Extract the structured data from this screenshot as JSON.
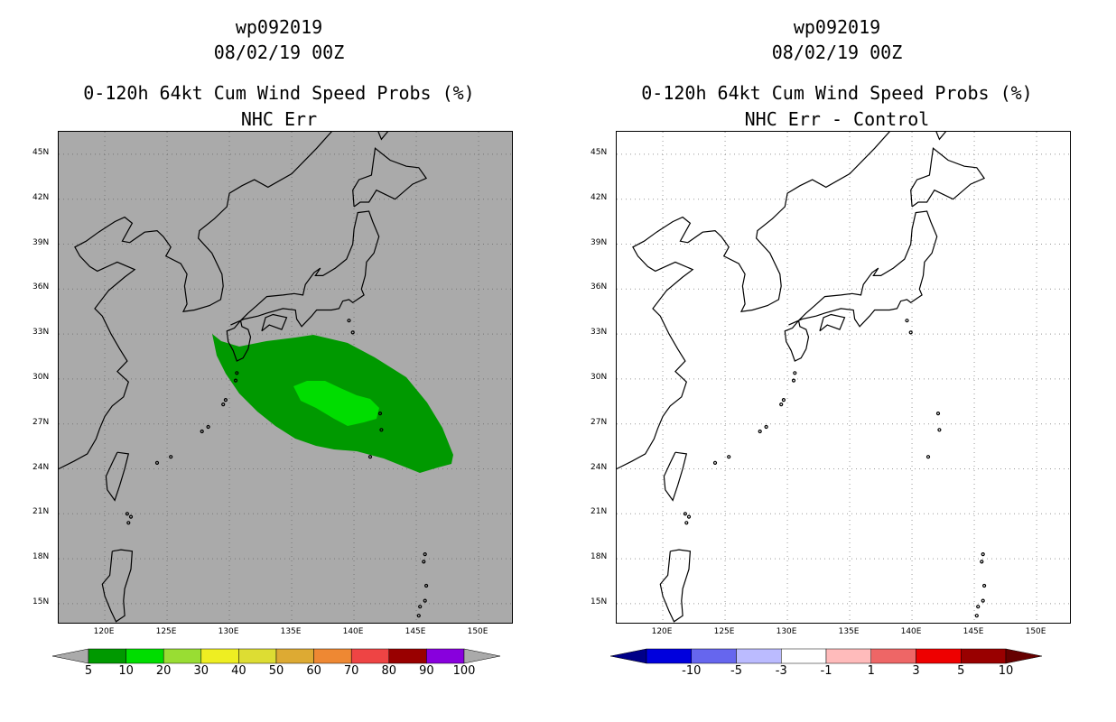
{
  "left": {
    "storm_id": "wp092019",
    "date": "08/02/19 00Z",
    "product": "0-120h 64kt Cum Wind Speed Probs (%)",
    "subtitle": "NHC Err",
    "background_color": "#aaaaaa",
    "colorbar": {
      "colors": [
        "#009900",
        "#00dd00",
        "#99dd33",
        "#eeee22",
        "#dddd33",
        "#ddaa33",
        "#ee8833",
        "#ee4444",
        "#990000",
        "#8800dd"
      ],
      "labels": [
        "5",
        "10",
        "20",
        "30",
        "40",
        "50",
        "60",
        "70",
        "80",
        "90",
        "100"
      ]
    }
  },
  "right": {
    "storm_id": "wp092019",
    "date": "08/02/19 00Z",
    "product": "0-120h 64kt Cum Wind Speed Probs (%)",
    "subtitle": "NHC Err - Control",
    "background_color": "#ffffff",
    "colorbar": {
      "colors": [
        "#0000dd",
        "#6666ee",
        "#bbbbff",
        "#ffffff",
        "#ffbbbb",
        "#ee6666",
        "#ee0000",
        "#990000"
      ],
      "left_tip_color": "#000088",
      "labels": [
        "-10",
        "-5",
        "-3",
        "-1",
        "1",
        "3",
        "5",
        "10"
      ]
    }
  },
  "axes": {
    "lat_labels": [
      "45N",
      "42N",
      "39N",
      "36N",
      "33N",
      "30N",
      "27N",
      "24N",
      "21N",
      "18N",
      "15N"
    ],
    "lon_labels": [
      "120E",
      "125E",
      "130E",
      "135E",
      "140E",
      "145E",
      "150E"
    ]
  },
  "probability_regions": [
    {
      "level": "5-10%",
      "color": "#009900"
    },
    {
      "level": "10-20%",
      "color": "#00dd00"
    }
  ]
}
